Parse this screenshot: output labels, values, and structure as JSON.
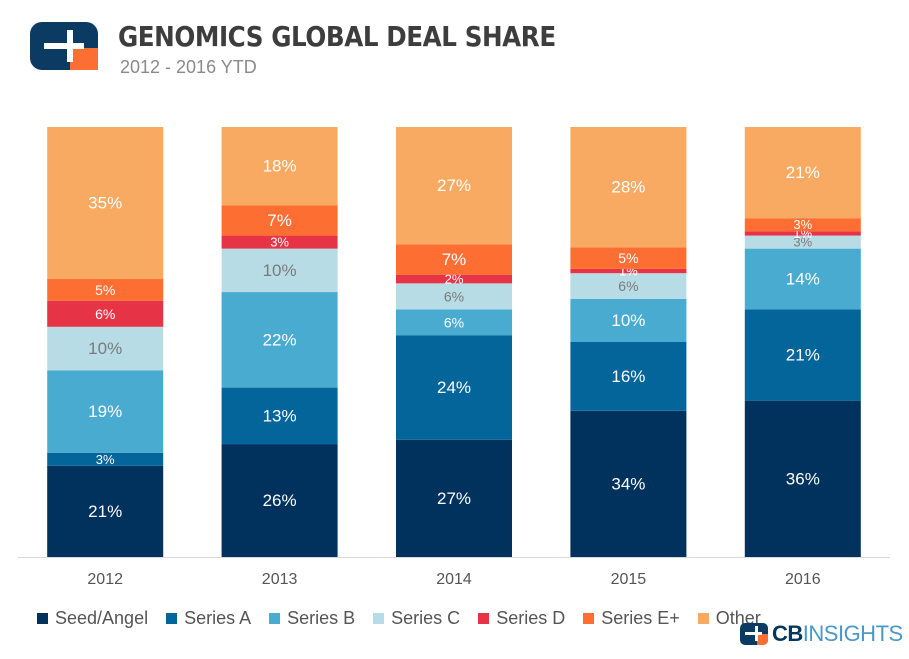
{
  "header": {
    "title": "GENOMICS GLOBAL DEAL SHARE",
    "subtitle": "2012 - 2016 YTD",
    "logo_icon": "cb-insights-logo-icon"
  },
  "brand": {
    "name_bold": "CB",
    "name_rest": "INSIGHTS"
  },
  "chart_data": {
    "type": "bar",
    "stacked": true,
    "normalized_to_100": true,
    "categories": [
      "2012",
      "2013",
      "2014",
      "2015",
      "2016"
    ],
    "series": [
      {
        "name": "Seed/Angel",
        "color": "#01325e",
        "values": [
          21,
          26,
          27,
          34,
          36
        ]
      },
      {
        "name": "Series A",
        "color": "#04659b",
        "values": [
          3,
          13,
          24,
          16,
          21
        ]
      },
      {
        "name": "Series B",
        "color": "#4aabd1",
        "values": [
          19,
          22,
          6,
          10,
          14
        ]
      },
      {
        "name": "Series C",
        "color": "#b8dce6",
        "values": [
          10,
          10,
          6,
          6,
          3
        ]
      },
      {
        "name": "Series D",
        "color": "#e63345",
        "values": [
          6,
          3,
          2,
          1,
          1
        ]
      },
      {
        "name": "Series E+",
        "color": "#fc6e32",
        "values": [
          5,
          7,
          7,
          5,
          3
        ]
      },
      {
        "name": "Other",
        "color": "#f8aa62",
        "values": [
          35,
          18,
          27,
          28,
          21
        ]
      }
    ],
    "label_colors": {
      "Seed/Angel": "#ffffff",
      "Series A": "#ffffff",
      "Series B": "#ffffff",
      "Series C": "#7a7a7a",
      "Series D": "#ffffff",
      "Series E+": "#ffffff",
      "Other": "#ffffff"
    },
    "value_suffix": "%",
    "title": "GENOMICS GLOBAL DEAL SHARE",
    "xlabel": "",
    "ylabel": "",
    "grid": false,
    "legend_position": "bottom"
  }
}
